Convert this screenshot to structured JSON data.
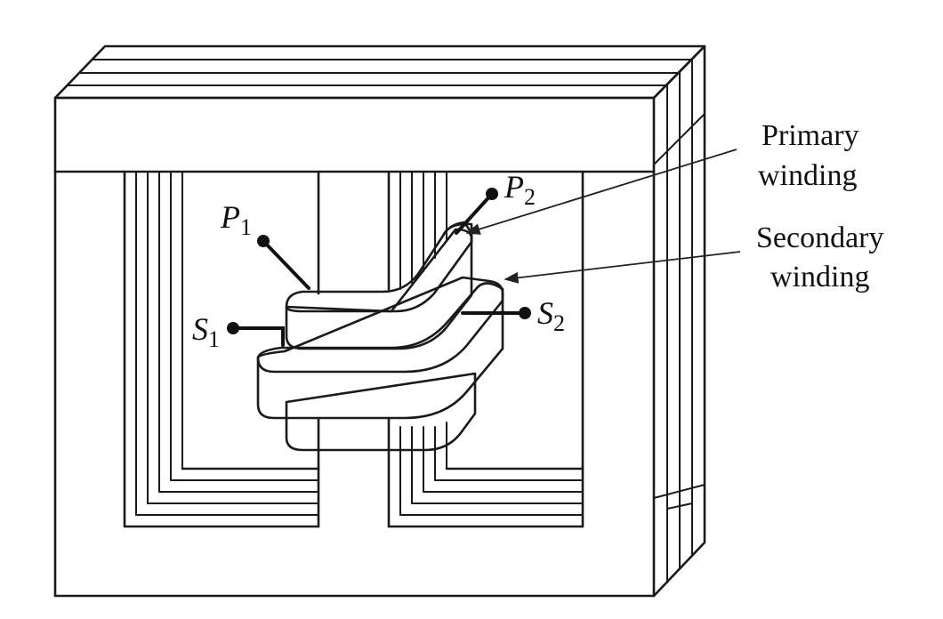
{
  "diagram": {
    "labels": {
      "primary_winding_line1": "Primary",
      "primary_winding_line2": "winding",
      "secondary_winding_line1": "Secondary",
      "secondary_winding_line2": "winding"
    },
    "terminals": {
      "p1": {
        "letter": "P",
        "subscript": "1"
      },
      "p2": {
        "letter": "P",
        "subscript": "2"
      },
      "s1": {
        "letter": "S",
        "subscript": "1"
      },
      "s2": {
        "letter": "S",
        "subscript": "2"
      }
    },
    "colors": {
      "line": "#1a1a1a",
      "secondary_fill": "#8c8c8c",
      "background": "#ffffff"
    }
  }
}
